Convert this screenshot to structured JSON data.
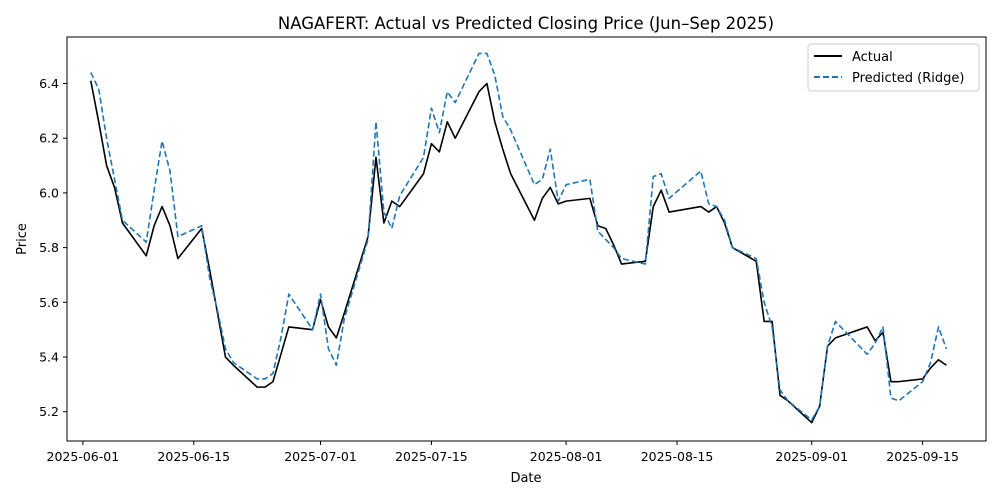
{
  "chart_data": {
    "type": "line",
    "title": "NAGAFERT: Actual vs Predicted Closing Price (Jun–Sep 2025)",
    "xlabel": "Date",
    "ylabel": "Price",
    "xlim": [
      "2025-05-30",
      "2025-09-23"
    ],
    "ylim": [
      5.093,
      6.57
    ],
    "x_ticks": [
      "2025-06-01",
      "2025-06-15",
      "2025-07-01",
      "2025-07-15",
      "2025-08-01",
      "2025-08-15",
      "2025-09-01",
      "2025-09-15"
    ],
    "y_ticks": [
      5.2,
      5.4,
      5.6,
      5.8,
      6.0,
      6.2,
      6.4
    ],
    "y_tick_labels": [
      "5.2",
      "5.4",
      "5.6",
      "5.8",
      "6.0",
      "6.2",
      "6.4"
    ],
    "grid": false,
    "legend_position": "top-right",
    "x": [
      "2025-06-02",
      "2025-06-03",
      "2025-06-04",
      "2025-06-05",
      "2025-06-06",
      "2025-06-09",
      "2025-06-10",
      "2025-06-11",
      "2025-06-12",
      "2025-06-13",
      "2025-06-16",
      "2025-06-17",
      "2025-06-18",
      "2025-06-19",
      "2025-06-20",
      "2025-06-23",
      "2025-06-24",
      "2025-06-25",
      "2025-06-26",
      "2025-06-27",
      "2025-06-30",
      "2025-07-01",
      "2025-07-02",
      "2025-07-03",
      "2025-07-04",
      "2025-07-07",
      "2025-07-08",
      "2025-07-09",
      "2025-07-10",
      "2025-07-11",
      "2025-07-14",
      "2025-07-15",
      "2025-07-16",
      "2025-07-17",
      "2025-07-18",
      "2025-07-21",
      "2025-07-22",
      "2025-07-23",
      "2025-07-24",
      "2025-07-25",
      "2025-07-28",
      "2025-07-29",
      "2025-07-30",
      "2025-07-31",
      "2025-08-01",
      "2025-08-04",
      "2025-08-05",
      "2025-08-06",
      "2025-08-07",
      "2025-08-08",
      "2025-08-11",
      "2025-08-12",
      "2025-08-13",
      "2025-08-14",
      "2025-08-18",
      "2025-08-19",
      "2025-08-20",
      "2025-08-21",
      "2025-08-22",
      "2025-08-25",
      "2025-08-26",
      "2025-08-27",
      "2025-08-28",
      "2025-08-29",
      "2025-09-01",
      "2025-09-02",
      "2025-09-03",
      "2025-09-04",
      "2025-09-08",
      "2025-09-09",
      "2025-09-10",
      "2025-09-11",
      "2025-09-12",
      "2025-09-15",
      "2025-09-16",
      "2025-09-17",
      "2025-09-18"
    ],
    "series": [
      {
        "name": "Actual",
        "color": "#000000",
        "line_style": "solid",
        "values": [
          6.41,
          6.26,
          6.1,
          6.02,
          5.89,
          5.77,
          5.88,
          5.95,
          5.88,
          5.76,
          5.87,
          5.72,
          5.56,
          5.4,
          5.37,
          5.29,
          5.29,
          5.31,
          5.41,
          5.51,
          5.5,
          5.61,
          5.51,
          5.47,
          5.56,
          5.84,
          6.13,
          5.89,
          5.97,
          5.95,
          6.07,
          6.18,
          6.15,
          6.26,
          6.2,
          6.37,
          6.4,
          6.26,
          6.16,
          6.07,
          5.9,
          5.98,
          6.02,
          5.96,
          5.97,
          5.98,
          5.88,
          5.87,
          5.81,
          5.74,
          5.75,
          5.95,
          6.01,
          5.93,
          5.95,
          5.93,
          5.95,
          5.89,
          5.8,
          5.75,
          5.53,
          5.53,
          5.26,
          5.24,
          5.16,
          5.22,
          5.44,
          5.47,
          5.51,
          5.46,
          5.49,
          5.31,
          5.31,
          5.32,
          5.36,
          5.39,
          5.37
        ]
      },
      {
        "name": "Predicted (Ridge)",
        "color": "#1f77b4",
        "line_style": "dashed",
        "values": [
          6.44,
          6.38,
          6.2,
          6.05,
          5.9,
          5.82,
          6.01,
          6.19,
          6.08,
          5.84,
          5.88,
          5.69,
          5.57,
          5.43,
          5.38,
          5.32,
          5.32,
          5.34,
          5.47,
          5.63,
          5.5,
          5.63,
          5.43,
          5.37,
          5.54,
          5.83,
          6.26,
          5.93,
          5.87,
          5.99,
          6.13,
          6.31,
          6.22,
          6.37,
          6.33,
          6.51,
          6.51,
          6.43,
          6.28,
          6.23,
          6.03,
          6.05,
          6.16,
          5.97,
          6.03,
          6.05,
          5.86,
          5.83,
          5.8,
          5.76,
          5.74,
          6.06,
          6.07,
          5.98,
          6.08,
          5.96,
          5.95,
          5.9,
          5.8,
          5.76,
          5.6,
          5.51,
          5.28,
          5.24,
          5.17,
          5.22,
          5.44,
          5.53,
          5.41,
          5.45,
          5.51,
          5.25,
          5.24,
          5.31,
          5.38,
          5.51,
          5.43
        ]
      }
    ]
  }
}
